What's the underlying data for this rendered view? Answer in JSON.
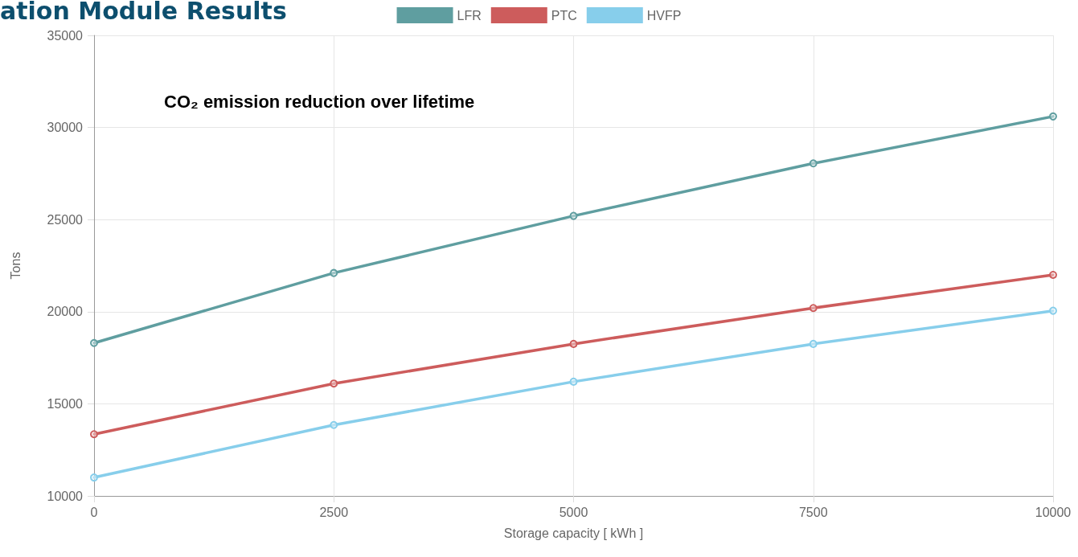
{
  "chart_data": {
    "type": "line",
    "title": "ation Module Results",
    "xlabel": "Storage capacity [ kWh ]",
    "ylabel": "Tons",
    "annotations": [
      "CO₂ emission reduction over lifetime"
    ],
    "x": [
      0,
      2500,
      5000,
      7500,
      10000
    ],
    "series": [
      {
        "name": "LFR",
        "color": "#5f9ea0",
        "values": [
          18300,
          22100,
          25200,
          28050,
          30600
        ]
      },
      {
        "name": "PTC",
        "color": "#cd5c5c",
        "values": [
          13350,
          16100,
          18250,
          20200,
          22000
        ]
      },
      {
        "name": "HVFP",
        "color": "#87ceeb",
        "values": [
          11000,
          13850,
          16200,
          18250,
          20050
        ]
      }
    ],
    "xlim": [
      0,
      10000
    ],
    "xticks": [
      0,
      2500,
      5000,
      7500,
      10000
    ],
    "ylim": [
      10000,
      35000
    ],
    "yticks": [
      10000,
      15000,
      20000,
      25000,
      30000,
      35000
    ],
    "grid": true,
    "legend": "top",
    "marker": "circle",
    "line_style": "solid"
  }
}
